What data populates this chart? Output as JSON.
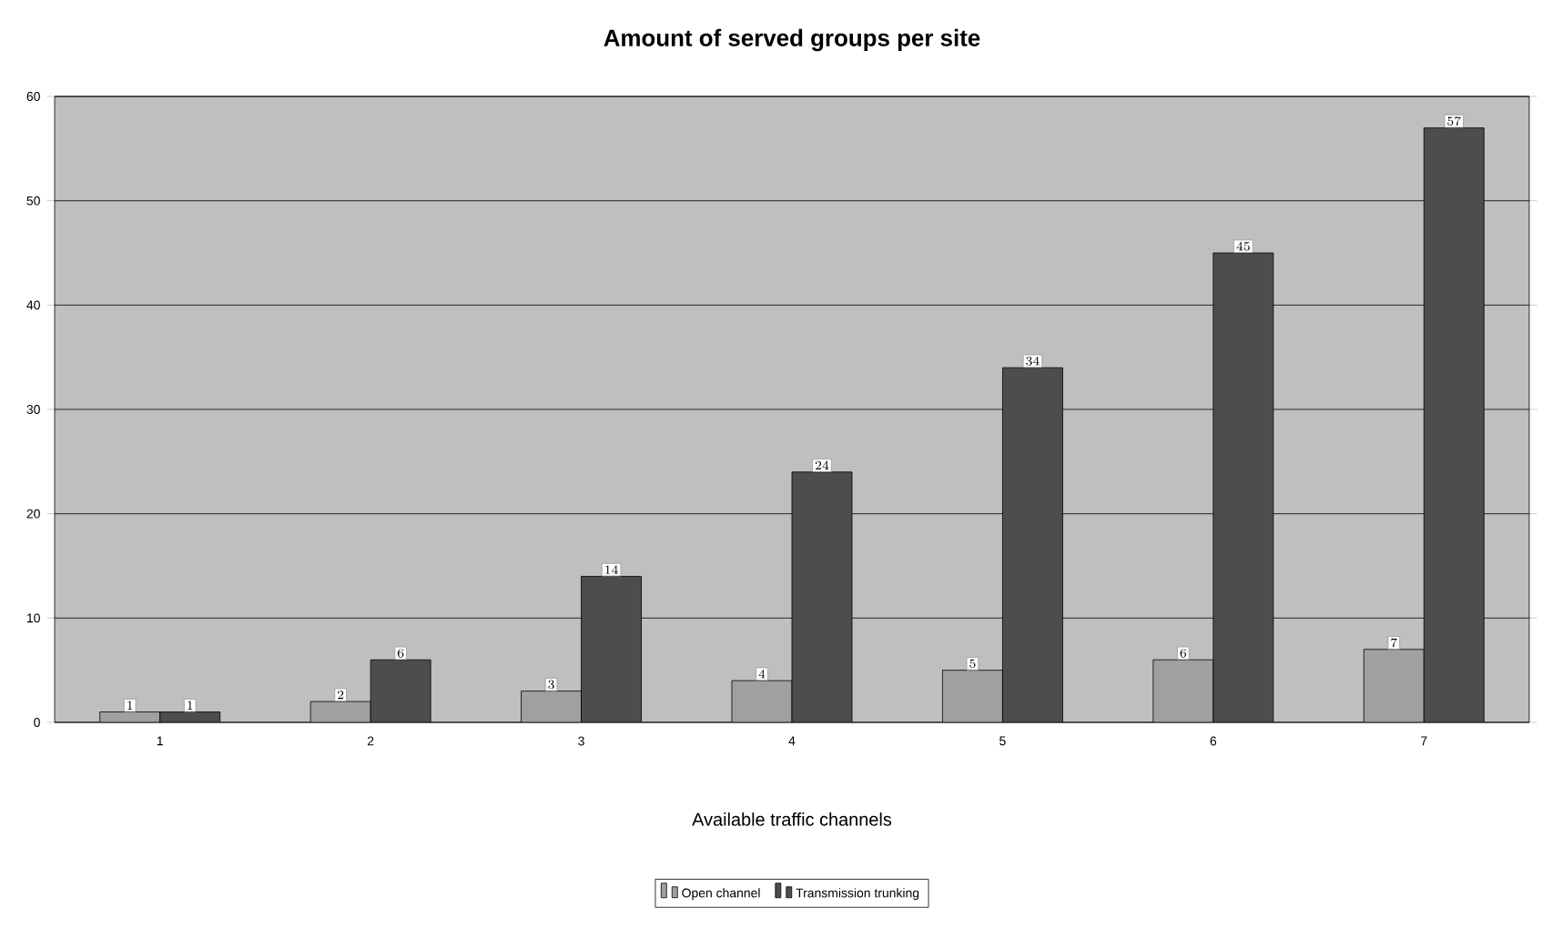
{
  "chart_data": {
    "type": "bar",
    "title": "Amount of served groups per site",
    "xlabel": "Available traffic channels",
    "categories": [
      "1",
      "2",
      "3",
      "4",
      "5",
      "6",
      "7"
    ],
    "series": [
      {
        "name": "Open channel",
        "color": "#a0a0a0",
        "values": [
          1,
          2,
          3,
          4,
          5,
          6,
          7
        ]
      },
      {
        "name": "Transmission trunking",
        "color": "#4d4d4d",
        "values": [
          1,
          6,
          14,
          24,
          34,
          45,
          57
        ]
      }
    ],
    "ylim": [
      0,
      60
    ],
    "yticks": [
      0,
      10,
      20,
      30,
      40,
      50,
      60
    ],
    "grid": "y",
    "legend": "bottom",
    "data_labels": true
  }
}
